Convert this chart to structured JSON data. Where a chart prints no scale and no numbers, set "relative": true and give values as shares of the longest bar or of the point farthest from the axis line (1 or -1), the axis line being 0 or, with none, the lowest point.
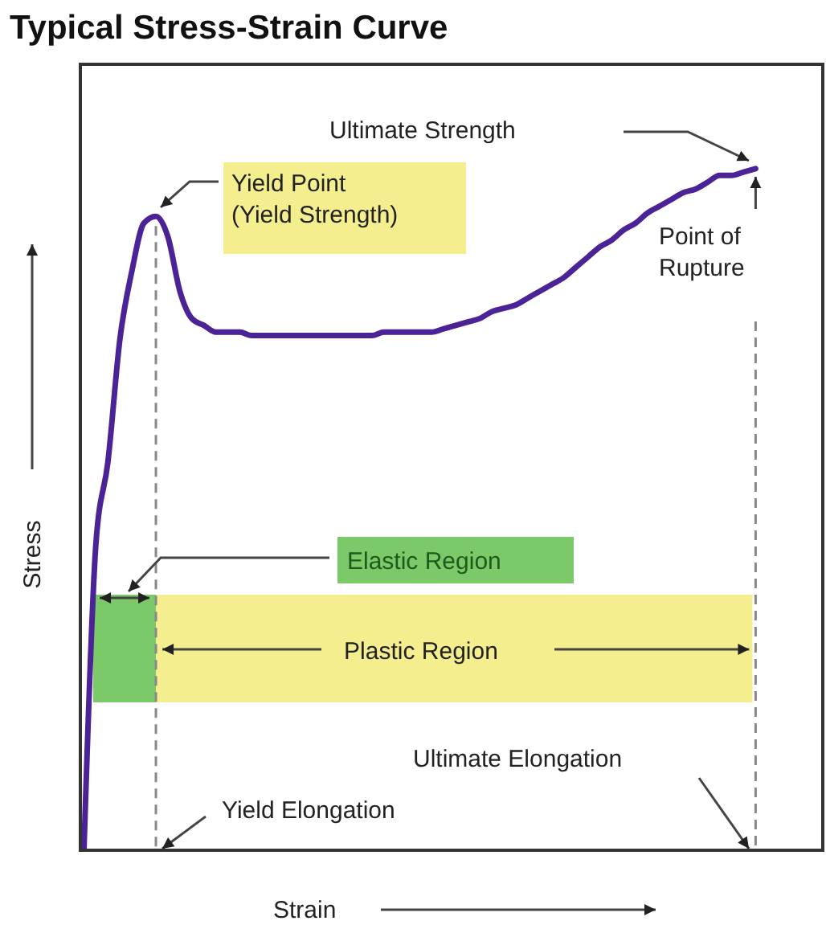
{
  "chart_data": {
    "type": "line",
    "relative": true,
    "title": "Typical Stress-Strain Curve",
    "xlabel": "Strain",
    "ylabel": "Stress",
    "categories": [
      null,
      null,
      null,
      null,
      null,
      null,
      null,
      null,
      null,
      null,
      null,
      null,
      null,
      null,
      null,
      null,
      null,
      null,
      null,
      null,
      null,
      null,
      null,
      null,
      null,
      null,
      null,
      null,
      null,
      null,
      null,
      null,
      null,
      null,
      null,
      null,
      null,
      null,
      null,
      null,
      null,
      null,
      null,
      null,
      null,
      null,
      null,
      null,
      null,
      null,
      null,
      null,
      null,
      null,
      null,
      null,
      null
    ],
    "series": [
      {
        "color": "#4b2396",
        "values": [
          0,
          0.45,
          0.57,
          0.75,
          0.85,
          0.92,
          0.93,
          0.9,
          0.82,
          0.78,
          0.77,
          0.76,
          0.76,
          0.76,
          0.755,
          0.755,
          0.755,
          0.755,
          0.755,
          0.755,
          0.755,
          0.755,
          0.755,
          0.755,
          0.755,
          0.76,
          0.76,
          0.76,
          0.76,
          0.76,
          0.765,
          0.77,
          0.775,
          0.78,
          0.79,
          0.795,
          0.8,
          0.81,
          0.82,
          0.83,
          0.84,
          0.855,
          0.87,
          0.885,
          0.895,
          0.91,
          0.92,
          0.935,
          0.945,
          0.955,
          0.965,
          0.97,
          0.98,
          0.99,
          0.99,
          0.995,
          1
        ]
      }
    ],
    "annotations": [
      "Ultimate Strength",
      "Yield Point\n(Yield Strength)",
      "Point of\nRupture",
      "Elastic Region",
      "Plastic Region",
      "Ultimate Elongation",
      "Yield Elongation"
    ]
  }
}
